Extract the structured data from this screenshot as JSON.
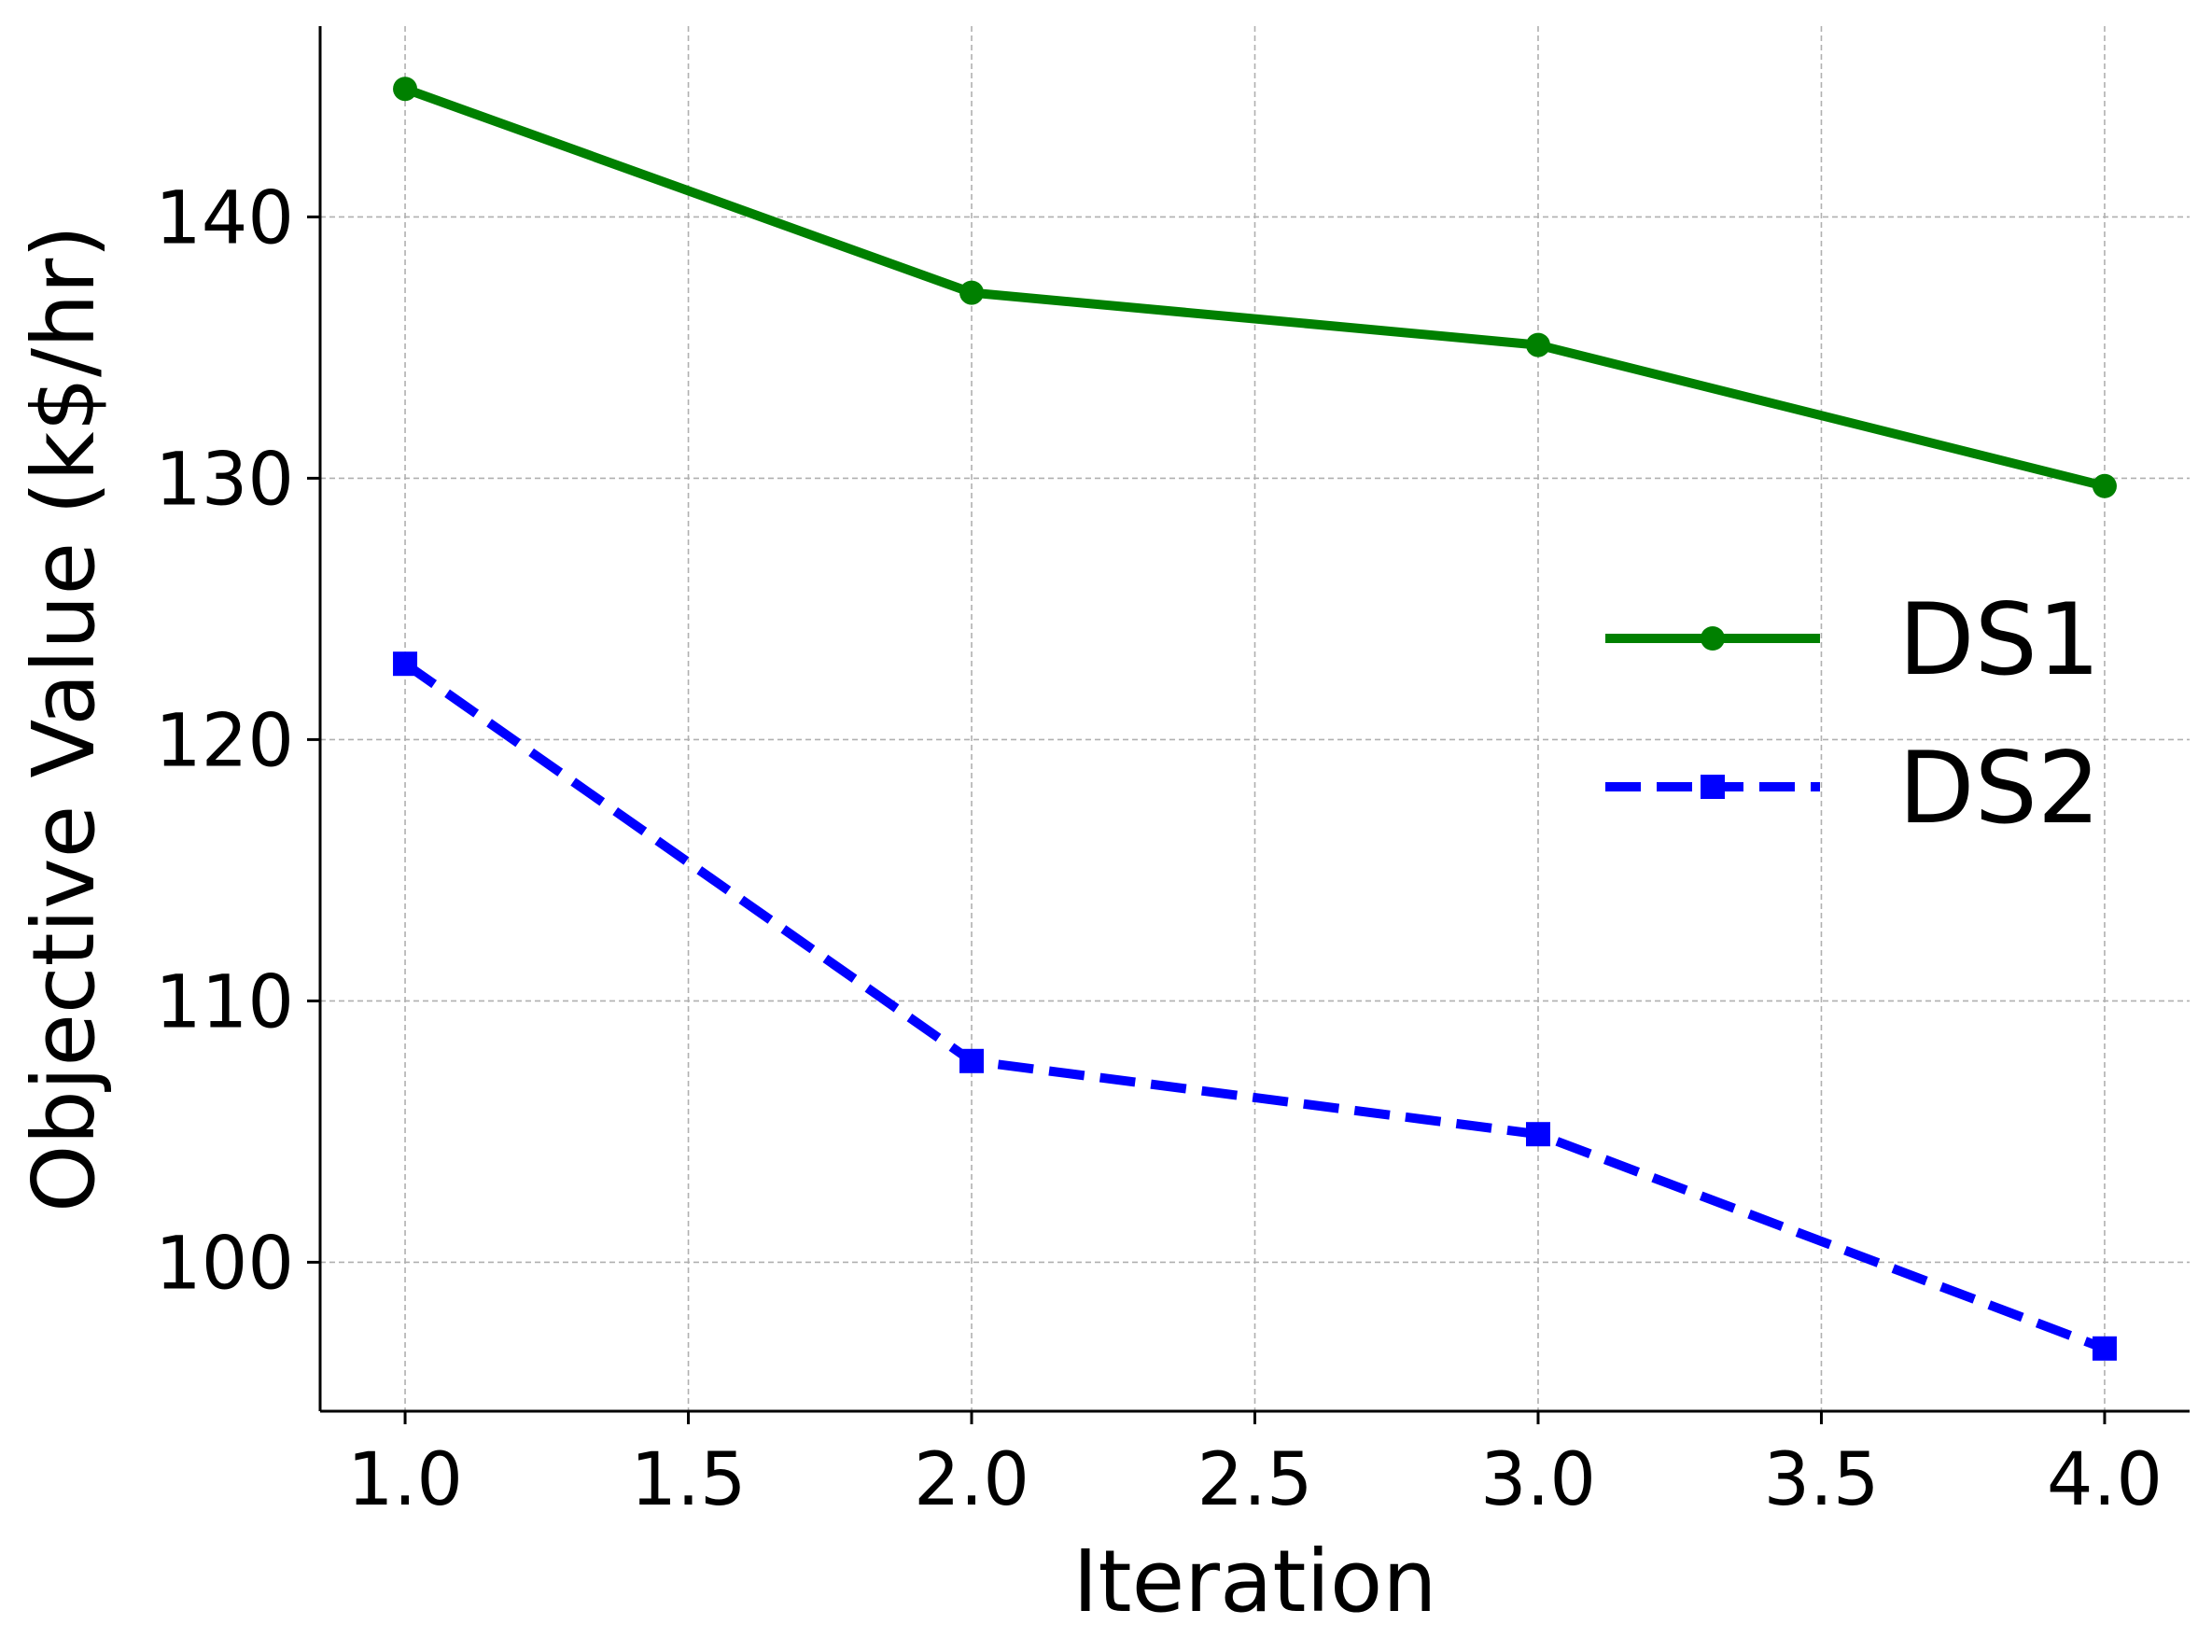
{
  "chart_data": {
    "type": "line",
    "title": "",
    "xlabel": "Iteration",
    "ylabel": "Objective Value (k$/hr)",
    "xlim": [
      0.85,
      4.15
    ],
    "ylim": [
      94.3,
      147.3
    ],
    "x_ticks": [
      "1.0",
      "1.5",
      "2.0",
      "2.5",
      "3.0",
      "3.5",
      "4.0"
    ],
    "x_tick_values": [
      1.0,
      1.5,
      2.0,
      2.5,
      3.0,
      3.5,
      4.0
    ],
    "y_ticks": [
      "100",
      "110",
      "120",
      "130",
      "140"
    ],
    "y_tick_values": [
      100,
      110,
      120,
      130,
      140
    ],
    "grid": true,
    "legend_position": "center-right",
    "series": [
      {
        "name": "DS1",
        "x": [
          1,
          2,
          3,
          4
        ],
        "values": [
          144.9,
          137.1,
          135.1,
          129.7
        ],
        "color": "#008000",
        "line_style": "solid",
        "marker": "circle"
      },
      {
        "name": "DS2",
        "x": [
          1,
          2,
          3,
          4
        ],
        "values": [
          122.9,
          107.7,
          104.9,
          96.7
        ],
        "color": "#0000ff",
        "line_style": "dashed",
        "marker": "square"
      }
    ]
  }
}
